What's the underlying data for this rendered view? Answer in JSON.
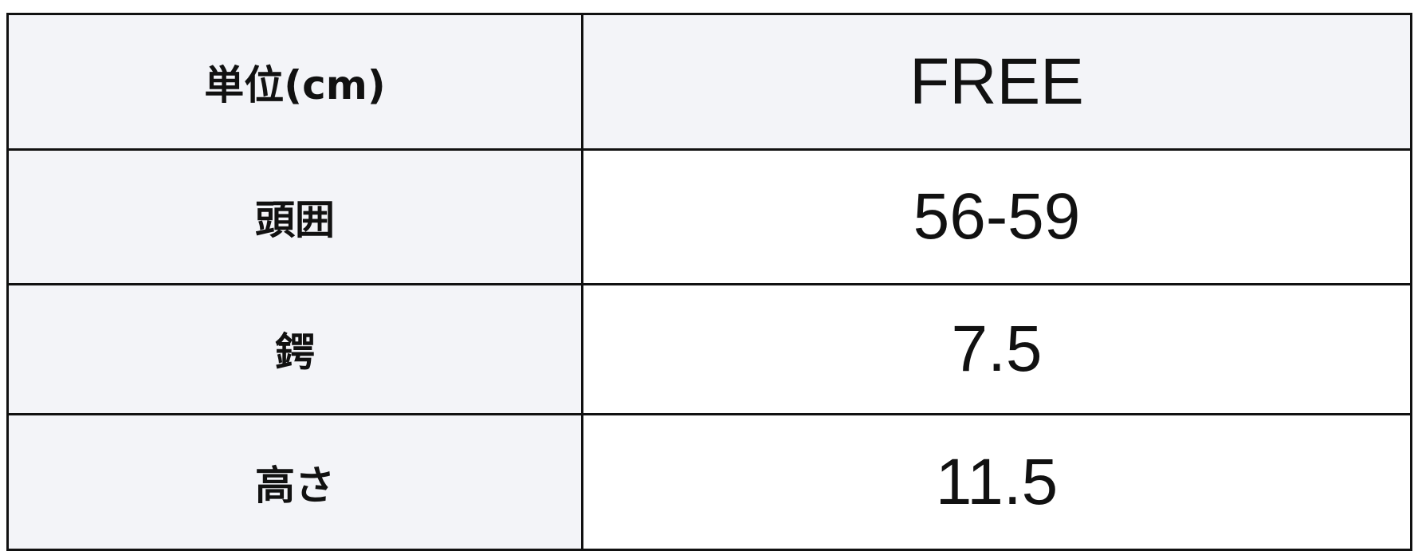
{
  "table": {
    "header": {
      "label": "単位(cm)",
      "value": "FREE"
    },
    "rows": [
      {
        "label": "頭囲",
        "value": "56-59"
      },
      {
        "label": "鍔",
        "value": "7.5"
      },
      {
        "label": "高さ",
        "value": "11.5"
      }
    ]
  },
  "colors": {
    "label_bg": "#f3f4f8",
    "border": "#111111"
  }
}
